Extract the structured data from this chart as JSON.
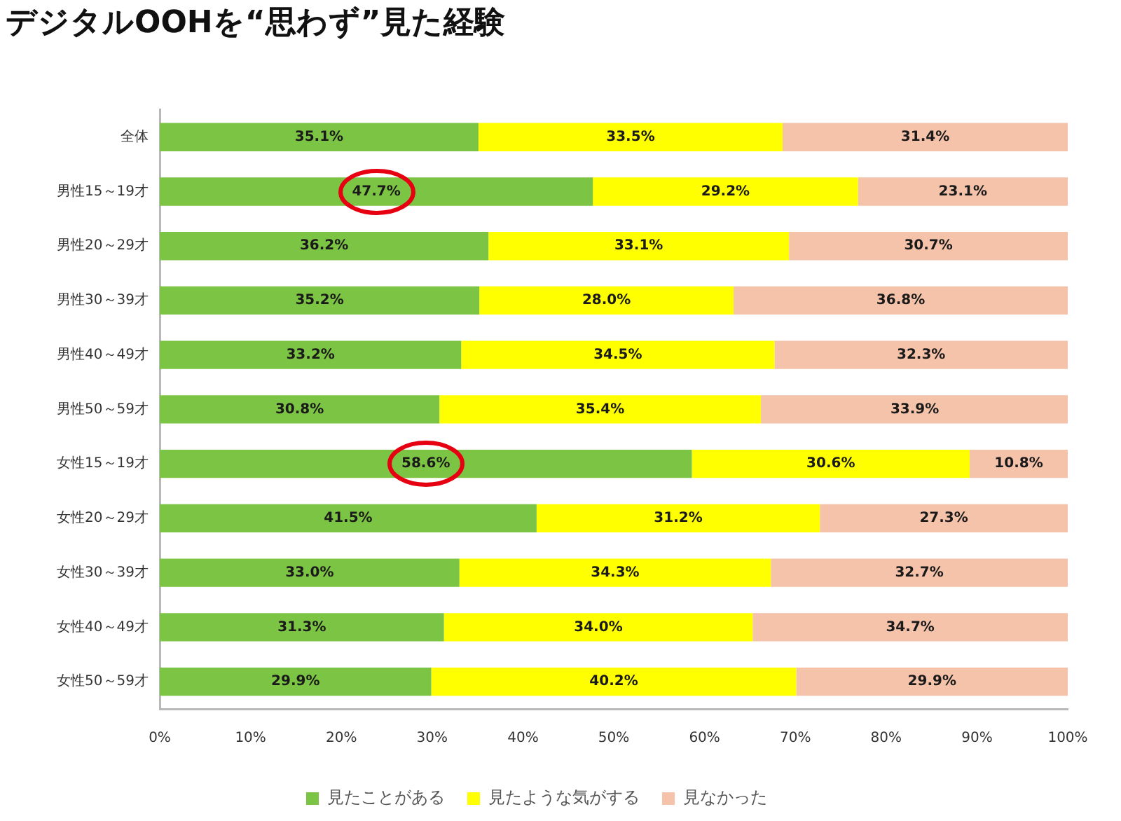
{
  "chart_data": {
    "type": "bar",
    "orientation": "horizontal",
    "stacked": true,
    "title": "デジタルOOHを“思わず”見た経験",
    "categories": [
      "全体",
      "男性15～19才",
      "男性20～29才",
      "男性30～39才",
      "男性40～49才",
      "男性50～59才",
      "女性15～19才",
      "女性20～29才",
      "女性30～39才",
      "女性40～49才",
      "女性50～59才"
    ],
    "series": [
      {
        "name": "見たことがある",
        "color": "#7cc444",
        "values": [
          35.1,
          47.7,
          36.2,
          35.2,
          33.2,
          30.8,
          58.6,
          41.5,
          33.0,
          31.3,
          29.9
        ],
        "value_labels": [
          "35.1%",
          "47.7%",
          "36.2%",
          "35.2%",
          "33.2%",
          "30.8%",
          "58.6%",
          "41.5%",
          "33.0%",
          "31.3%",
          "29.9%"
        ]
      },
      {
        "name": "見たような気がする",
        "color": "#ffff00",
        "values": [
          33.5,
          29.2,
          33.1,
          28.0,
          34.5,
          35.4,
          30.6,
          31.2,
          34.3,
          34.0,
          40.2
        ],
        "value_labels": [
          "33.5%",
          "29.2%",
          "33.1%",
          "28.0%",
          "34.5%",
          "35.4%",
          "30.6%",
          "31.2%",
          "34.3%",
          "34.0%",
          "40.2%"
        ]
      },
      {
        "name": "見なかった",
        "color": "#f5c2aa",
        "values": [
          31.4,
          23.1,
          30.7,
          36.8,
          32.3,
          33.9,
          10.8,
          27.3,
          32.7,
          34.7,
          29.9
        ],
        "value_labels": [
          "31.4%",
          "23.1%",
          "30.7%",
          "36.8%",
          "32.3%",
          "33.9%",
          "10.8%",
          "27.3%",
          "32.7%",
          "34.7%",
          "29.9%"
        ]
      }
    ],
    "xlim": [
      0,
      100
    ],
    "xticks": [
      {
        "value": 0,
        "label": "0%"
      },
      {
        "value": 10,
        "label": "10%"
      },
      {
        "value": 20,
        "label": "20%"
      },
      {
        "value": 30,
        "label": "30%"
      },
      {
        "value": 40,
        "label": "40%"
      },
      {
        "value": 50,
        "label": "50%"
      },
      {
        "value": 60,
        "label": "60%"
      },
      {
        "value": 70,
        "label": "70%"
      },
      {
        "value": 80,
        "label": "80%"
      },
      {
        "value": 90,
        "label": "90%"
      },
      {
        "value": 100,
        "label": "100%"
      }
    ],
    "legend": "bottom"
  }
}
